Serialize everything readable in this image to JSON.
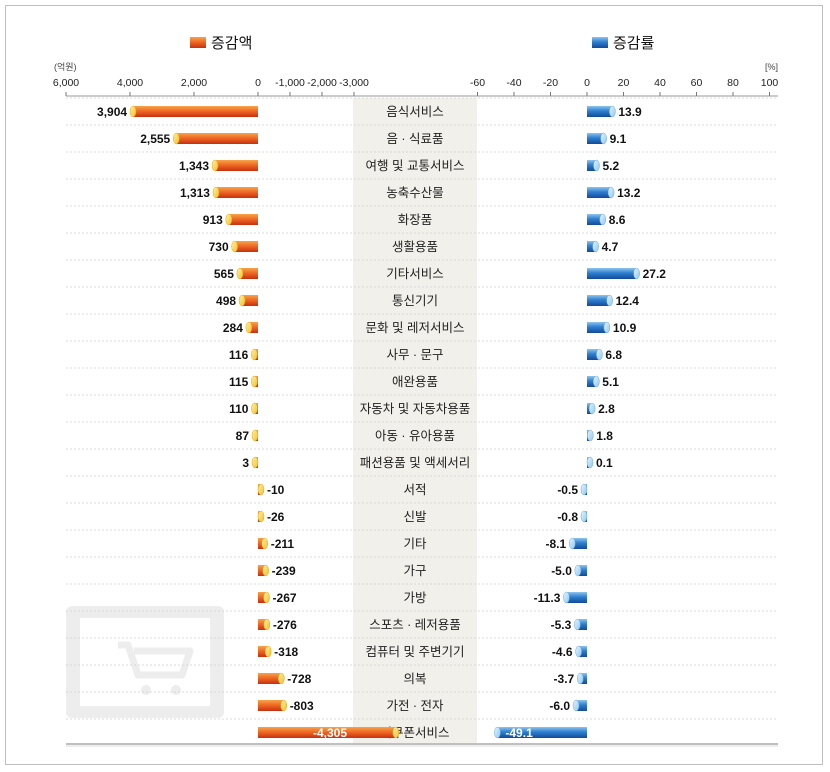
{
  "chart_data": {
    "type": "bar",
    "categories": [
      "음식서비스",
      "음 · 식료품",
      "여행 및 교통서비스",
      "농축수산물",
      "화장품",
      "생활용품",
      "기타서비스",
      "통신기기",
      "문화 및 레저서비스",
      "사무 · 문구",
      "애완용품",
      "자동차 및 자동차용품",
      "아동 · 유아용품",
      "패션용품 및 액세서리",
      "서적",
      "신발",
      "기타",
      "가구",
      "가방",
      "스포츠 · 레저용품",
      "컴퓨터 및 주변기기",
      "의복",
      "가전 · 전자",
      "이쿠폰서비스"
    ],
    "series": [
      {
        "name": "증감액",
        "unit": "(억원)",
        "values": [
          3904,
          2555,
          1343,
          1313,
          913,
          730,
          565,
          498,
          284,
          116,
          115,
          110,
          87,
          3,
          -10,
          -26,
          -211,
          -239,
          -267,
          -276,
          -318,
          -728,
          -803,
          -4305
        ],
        "labels": [
          "3,904",
          "2,555",
          "1,343",
          "1,313",
          "913",
          "730",
          "565",
          "498",
          "284",
          "116",
          "115",
          "110",
          "87",
          "3",
          "-10",
          "-26",
          "-211",
          "-239",
          "-267",
          "-276",
          "-318",
          "-728",
          "-803",
          "-4,305"
        ],
        "color": "#e8461e",
        "ticks": [
          {
            "value": 6000,
            "label": "6,000"
          },
          {
            "value": 4000,
            "label": "4,000"
          },
          {
            "value": 2000,
            "label": "2,000"
          },
          {
            "value": 0,
            "label": "0"
          },
          {
            "value": -1000,
            "label": "-1,000"
          },
          {
            "value": -2000,
            "label": "-2,000"
          },
          {
            "value": -3000,
            "label": "-3,000"
          }
        ]
      },
      {
        "name": "증감률",
        "unit": "[%]",
        "values": [
          13.9,
          9.1,
          5.2,
          13.2,
          8.6,
          4.7,
          27.2,
          12.4,
          10.9,
          6.8,
          5.1,
          2.8,
          1.8,
          0.1,
          -0.5,
          -0.8,
          -8.1,
          -5.0,
          -11.3,
          -5.3,
          -4.6,
          -3.7,
          -6.0,
          -49.1
        ],
        "labels": [
          "13.9",
          "9.1",
          "5.2",
          "13.2",
          "8.6",
          "4.7",
          "27.2",
          "12.4",
          "10.9",
          "6.8",
          "5.1",
          "2.8",
          "1.8",
          "0.1",
          "-0.5",
          "-0.8",
          "-8.1",
          "-5.0",
          "-11.3",
          "-5.3",
          "-4.6",
          "-3.7",
          "-6.0",
          "-49.1"
        ],
        "color": "#1f5fb4",
        "ticks": [
          {
            "value": -60,
            "label": "-60"
          },
          {
            "value": -40,
            "label": "-40"
          },
          {
            "value": -20,
            "label": "-20"
          },
          {
            "value": 0,
            "label": "0"
          },
          {
            "value": 20,
            "label": "20"
          },
          {
            "value": 40,
            "label": "40"
          },
          {
            "value": 60,
            "label": "60"
          },
          {
            "value": 80,
            "label": "80"
          },
          {
            "value": 100,
            "label": "100"
          }
        ]
      }
    ],
    "legend_placement": "top",
    "grid": "dashed horizontal row separators"
  },
  "decoration": {
    "watermark_icon": "shopping-cart-monitor-icon"
  }
}
